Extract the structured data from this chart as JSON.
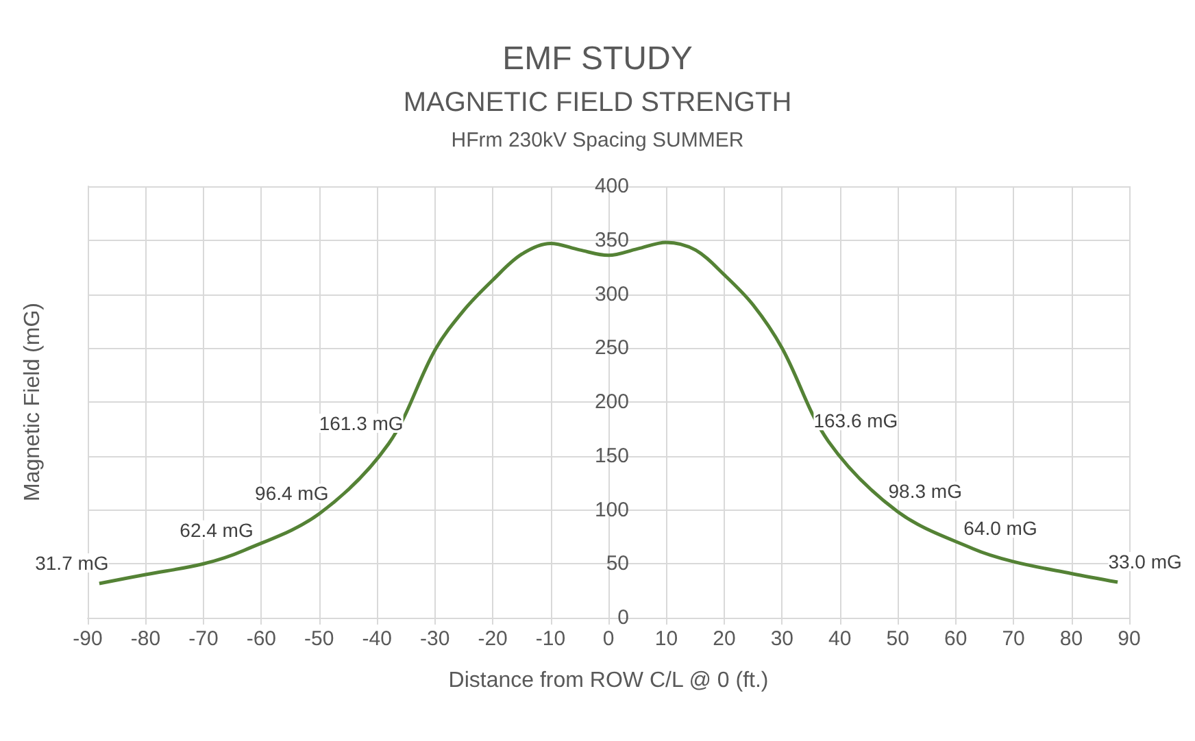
{
  "chart_data": {
    "type": "line",
    "title": "EMF STUDY",
    "subtitle": "MAGNETIC FIELD STRENGTH",
    "annotations": [
      "HFrm 230kV Spacing SUMMER"
    ],
    "xlabel": "Distance from ROW C/L @ 0 (ft.)",
    "ylabel": "Magnetic Field (mG)",
    "x": [
      -88,
      -80,
      -70,
      -63,
      -50,
      -38,
      -30,
      -25,
      -20,
      -15,
      -10,
      -5,
      0,
      5,
      10,
      15,
      20,
      25,
      30,
      38,
      50,
      63,
      70,
      80,
      88
    ],
    "series": [
      {
        "color": "#548235",
        "values": [
          31.7,
          40,
          50,
          62.4,
          96.4,
          161.3,
          248,
          285,
          313,
          337,
          347,
          341,
          336,
          342,
          348,
          341,
          318,
          290,
          250,
          163.6,
          98.3,
          64.0,
          52,
          41,
          33.0
        ],
        "value_labels": [
          "31.7 mG",
          null,
          null,
          "62.4 mG",
          "96.4 mG",
          "161.3 mG",
          null,
          null,
          null,
          null,
          null,
          null,
          null,
          null,
          null,
          null,
          null,
          null,
          null,
          "163.6 mG",
          "98.3 mG",
          "64.0 mG",
          null,
          null,
          "33.0 mG"
        ]
      }
    ],
    "xlim": [
      -90,
      90
    ],
    "xticks": [
      -90,
      -80,
      -70,
      -60,
      -50,
      -40,
      -30,
      -20,
      -10,
      0,
      10,
      20,
      30,
      40,
      50,
      60,
      70,
      80,
      90
    ],
    "ylim": [
      0,
      400
    ],
    "yticks": [
      0,
      50,
      100,
      150,
      200,
      250,
      300,
      350,
      400
    ],
    "grid": true,
    "marker": "none",
    "line_style": "solid"
  }
}
